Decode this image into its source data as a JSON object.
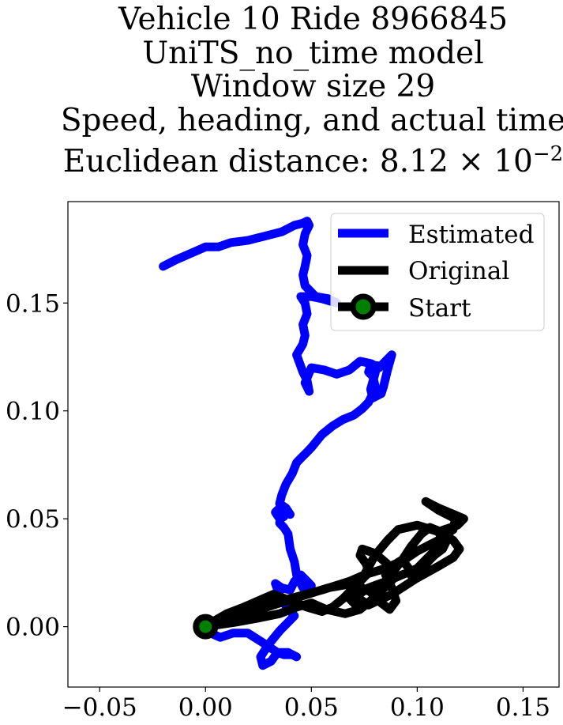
{
  "chart_data": {
    "type": "line",
    "title_lines": [
      "Vehicle 10 Ride 8966845",
      "UniTS_no_time model",
      "Window size 29",
      "Speed, heading, and actual time",
      "Euclidean distance: 8.12 × 10",
      "−2"
    ],
    "xlabel": "",
    "ylabel": "",
    "xlim": [
      -0.065,
      0.167
    ],
    "ylim": [
      -0.028,
      0.197
    ],
    "xticks": [
      -0.05,
      0.0,
      0.05,
      0.1,
      0.15
    ],
    "xtick_labels": [
      "−0.05",
      "0.00",
      "0.05",
      "0.10",
      "0.15"
    ],
    "yticks": [
      0.0,
      0.05,
      0.1,
      0.15
    ],
    "ytick_labels": [
      "0.00",
      "0.05",
      "0.10",
      "0.15"
    ],
    "grid": false,
    "legend_placement": "upper right",
    "legend_labels": [
      "Estimated",
      "Original",
      "Start"
    ],
    "series": [
      {
        "name": "Estimated",
        "color": "#0000ff",
        "x": [
          0.0,
          0.007,
          0.013,
          0.02,
          0.028,
          0.034,
          0.039,
          0.043,
          0.041,
          0.037,
          0.034,
          0.031,
          0.027,
          0.026,
          0.03,
          0.035,
          0.042,
          0.036,
          0.033,
          0.036,
          0.04,
          0.042,
          0.045,
          0.048,
          0.05,
          0.046,
          0.043,
          0.042,
          0.04,
          0.039,
          0.037,
          0.035,
          0.036,
          0.037,
          0.035,
          0.033,
          0.034,
          0.04,
          0.038,
          0.035,
          0.036,
          0.038,
          0.041,
          0.043,
          0.045,
          0.048,
          0.05,
          0.055,
          0.06,
          0.065,
          0.07,
          0.074,
          0.077,
          0.079,
          0.08,
          0.079,
          0.077,
          0.078,
          0.081,
          0.08,
          0.078,
          0.079,
          0.083,
          0.084,
          0.086,
          0.088,
          0.082,
          0.078,
          0.073,
          0.068,
          0.062,
          0.056,
          0.05,
          0.047,
          0.049,
          0.048,
          0.046,
          0.043,
          0.046,
          0.047,
          0.046,
          0.048,
          0.047,
          0.045,
          0.05,
          0.055,
          0.062,
          0.058,
          0.052,
          0.047,
          0.046,
          0.047,
          0.048,
          0.046,
          0.047,
          0.049,
          0.048,
          0.046,
          0.042,
          0.036,
          0.028,
          0.02,
          0.012,
          0.006,
          0.0,
          -0.007,
          -0.014,
          -0.02
        ],
        "y": [
          -0.002,
          -0.005,
          -0.003,
          -0.003,
          -0.008,
          -0.012,
          -0.012,
          -0.014,
          -0.013,
          -0.013,
          -0.012,
          -0.016,
          -0.018,
          -0.014,
          -0.008,
          -0.002,
          0.005,
          0.012,
          0.02,
          0.018,
          0.017,
          0.021,
          0.024,
          0.021,
          0.019,
          0.018,
          0.024,
          0.03,
          0.036,
          0.043,
          0.046,
          0.048,
          0.053,
          0.051,
          0.05,
          0.053,
          0.054,
          0.052,
          0.055,
          0.057,
          0.061,
          0.066,
          0.071,
          0.076,
          0.078,
          0.081,
          0.083,
          0.089,
          0.093,
          0.096,
          0.098,
          0.101,
          0.104,
          0.108,
          0.112,
          0.116,
          0.118,
          0.121,
          0.121,
          0.117,
          0.11,
          0.106,
          0.108,
          0.111,
          0.119,
          0.126,
          0.12,
          0.122,
          0.123,
          0.119,
          0.117,
          0.119,
          0.12,
          0.113,
          0.109,
          0.114,
          0.118,
          0.126,
          0.131,
          0.135,
          0.14,
          0.145,
          0.15,
          0.153,
          0.153,
          0.152,
          0.15,
          0.152,
          0.153,
          0.158,
          0.163,
          0.167,
          0.172,
          0.177,
          0.182,
          0.186,
          0.188,
          0.187,
          0.186,
          0.183,
          0.181,
          0.179,
          0.178,
          0.176,
          0.176,
          0.173,
          0.17,
          0.167
        ]
      },
      {
        "name": "Original",
        "color": "#000000",
        "x": [
          0.0,
          0.012,
          0.025,
          0.04,
          0.055,
          0.068,
          0.075,
          0.085,
          0.094,
          0.1,
          0.11,
          0.117,
          0.118,
          0.11,
          0.104,
          0.11,
          0.122,
          0.119,
          0.11,
          0.113,
          0.107,
          0.104,
          0.1,
          0.088,
          0.077,
          0.071,
          0.077,
          0.088,
          0.099,
          0.11,
          0.117,
          0.12,
          0.117,
          0.11,
          0.1,
          0.091,
          0.086,
          0.08,
          0.075,
          0.07,
          0.065,
          0.06,
          0.055,
          0.048,
          0.04,
          0.032,
          0.025,
          0.018,
          0.01,
          0.003,
          0.0,
          0.01,
          0.02,
          0.032,
          0.045,
          0.058,
          0.07,
          0.078,
          0.083,
          0.087,
          0.09,
          0.088,
          0.085,
          0.088,
          0.093,
          0.096,
          0.098,
          0.102,
          0.105,
          0.108,
          0.112,
          0.114,
          0.111,
          0.106,
          0.102,
          0.097,
          0.093,
          0.089,
          0.085,
          0.082,
          0.078,
          0.072,
          0.068,
          0.07,
          0.074,
          0.077,
          0.076,
          0.073,
          0.074,
          0.08,
          0.086,
          0.09,
          0.087,
          0.082,
          0.078,
          0.073,
          0.066,
          0.057,
          0.05,
          0.043,
          0.035,
          0.025,
          0.014,
          0.0
        ],
        "y": [
          0.0,
          0.004,
          0.009,
          0.013,
          0.017,
          0.021,
          0.024,
          0.027,
          0.031,
          0.035,
          0.04,
          0.045,
          0.05,
          0.054,
          0.058,
          0.055,
          0.05,
          0.047,
          0.044,
          0.038,
          0.034,
          0.031,
          0.027,
          0.022,
          0.018,
          0.014,
          0.01,
          0.015,
          0.022,
          0.028,
          0.032,
          0.036,
          0.04,
          0.044,
          0.047,
          0.045,
          0.04,
          0.033,
          0.024,
          0.018,
          0.013,
          0.009,
          0.007,
          0.009,
          0.012,
          0.015,
          0.012,
          0.009,
          0.006,
          0.002,
          0.0,
          0.002,
          0.006,
          0.01,
          0.014,
          0.018,
          0.02,
          0.016,
          0.011,
          0.008,
          0.012,
          0.018,
          0.024,
          0.028,
          0.031,
          0.027,
          0.022,
          0.026,
          0.03,
          0.033,
          0.036,
          0.04,
          0.044,
          0.046,
          0.043,
          0.037,
          0.031,
          0.026,
          0.021,
          0.016,
          0.011,
          0.009,
          0.013,
          0.018,
          0.022,
          0.025,
          0.029,
          0.033,
          0.036,
          0.034,
          0.029,
          0.024,
          0.02,
          0.016,
          0.012,
          0.008,
          0.006,
          0.008,
          0.011,
          0.009,
          0.006,
          0.004,
          0.002,
          0.0
        ]
      }
    ],
    "start_point": {
      "name": "Start",
      "x": 0.0,
      "y": 0.0,
      "edge_color": "#000000",
      "face_color": "#008000"
    }
  }
}
